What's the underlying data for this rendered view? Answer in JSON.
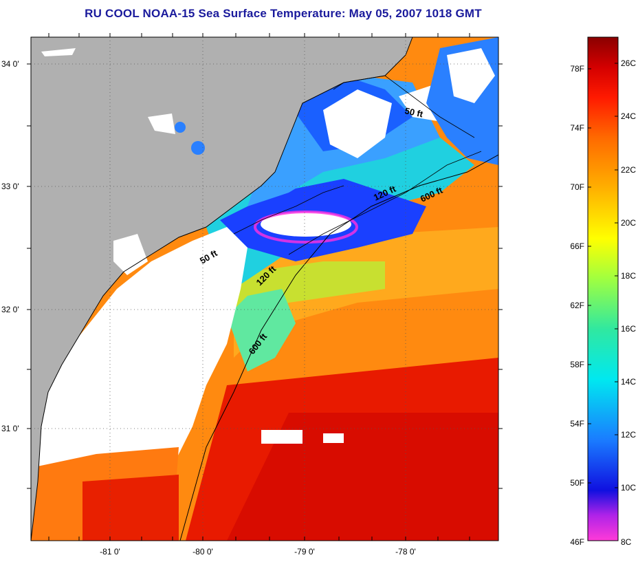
{
  "title": "RU COOL  NOAA-15  Sea Surface Temperature:  May 05, 2007 1018 GMT",
  "map": {
    "lat_labels": [
      "34 0'",
      "33 0'",
      "32 0'",
      "31 0'"
    ],
    "lon_labels": [
      "-81 0'",
      "-80 0'",
      "-79 0'",
      "-78 0'"
    ],
    "isobaths": [
      "50 ft",
      "50 ft",
      "120 ft",
      "120 ft",
      "600 ft",
      "600 ft"
    ],
    "colors": {
      "land": "#b0b0b0",
      "cloud": "#ffffff"
    }
  },
  "colorbar": {
    "fahrenheit": [
      "78F",
      "74F",
      "70F",
      "66F",
      "62F",
      "58F",
      "54F",
      "50F",
      "46F"
    ],
    "celsius": [
      "26C",
      "24C",
      "22C",
      "20C",
      "18C",
      "16C",
      "14C",
      "12C",
      "10C",
      "8C"
    ],
    "range_c": [
      8,
      27
    ]
  }
}
